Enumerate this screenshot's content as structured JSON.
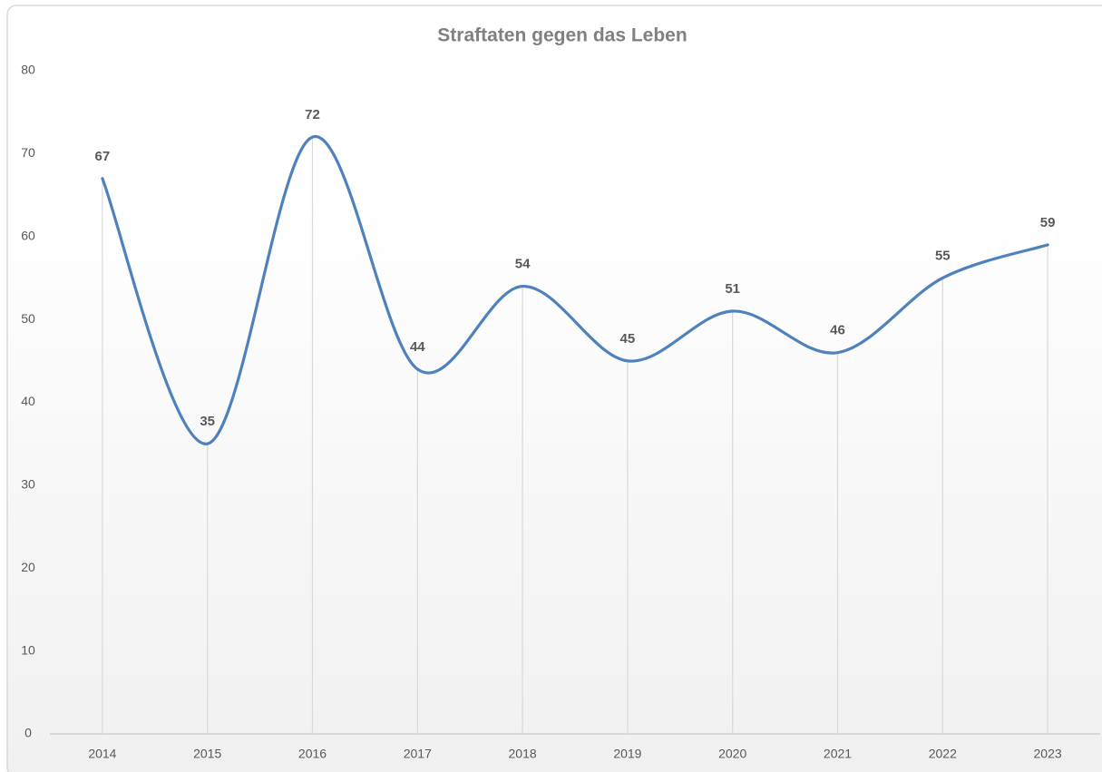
{
  "chart_data": {
    "type": "line",
    "title": "Straftaten  gegen das Leben",
    "categories": [
      "2014",
      "2015",
      "2016",
      "2017",
      "2018",
      "2019",
      "2020",
      "2021",
      "2022",
      "2023"
    ],
    "series": [
      {
        "name": "Straftaten gegen das Leben",
        "color": "#4f81bd",
        "values": [
          67,
          35,
          72,
          44,
          54,
          45,
          51,
          46,
          55,
          59
        ]
      }
    ],
    "ylim": [
      0,
      80
    ],
    "yticks": [
      0,
      10,
      20,
      30,
      40,
      50,
      60,
      70,
      80
    ],
    "grid": false,
    "smooth": true,
    "drop_lines": true,
    "data_labels": true
  }
}
